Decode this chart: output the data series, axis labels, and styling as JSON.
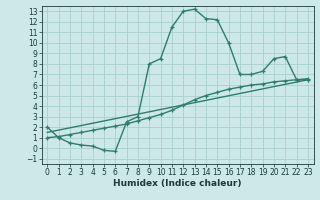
{
  "title": "",
  "xlabel": "Humidex (Indice chaleur)",
  "bg_color": "#cce8e8",
  "grid_color": "#aacfcf",
  "line_color": "#2e7d6e",
  "xlim": [
    -0.5,
    23.5
  ],
  "ylim": [
    -1.5,
    13.5
  ],
  "xticks": [
    0,
    1,
    2,
    3,
    4,
    5,
    6,
    7,
    8,
    9,
    10,
    11,
    12,
    13,
    14,
    15,
    16,
    17,
    18,
    19,
    20,
    21,
    22,
    23
  ],
  "yticks": [
    -1,
    0,
    1,
    2,
    3,
    4,
    5,
    6,
    7,
    8,
    9,
    10,
    11,
    12,
    13
  ],
  "line1_x": [
    0,
    1,
    2,
    3,
    4,
    5,
    6,
    7,
    8,
    9,
    10,
    11,
    12,
    13,
    14,
    15,
    16,
    17,
    18,
    19,
    20,
    21,
    22,
    23
  ],
  "line1_y": [
    2,
    1,
    0.5,
    0.3,
    0.2,
    -0.2,
    -0.3,
    2.5,
    3.0,
    8.0,
    8.5,
    11.5,
    13.0,
    13.2,
    12.3,
    12.2,
    10.0,
    7.0,
    7.0,
    7.3,
    8.5,
    8.7,
    6.5,
    6.5
  ],
  "line2_x": [
    0,
    1,
    2,
    3,
    4,
    5,
    6,
    7,
    8,
    9,
    10,
    11,
    12,
    13,
    14,
    15,
    16,
    17,
    18,
    19,
    20,
    21,
    22,
    23
  ],
  "line2_y": [
    1.0,
    1.1,
    1.3,
    1.5,
    1.7,
    1.9,
    2.1,
    2.3,
    2.6,
    2.9,
    3.2,
    3.6,
    4.1,
    4.6,
    5.0,
    5.3,
    5.6,
    5.8,
    6.0,
    6.1,
    6.3,
    6.4,
    6.5,
    6.6
  ],
  "line3_x": [
    0,
    23
  ],
  "line3_y": [
    1.5,
    6.5
  ],
  "tick_fontsize": 5.5,
  "xlabel_fontsize": 6.5
}
